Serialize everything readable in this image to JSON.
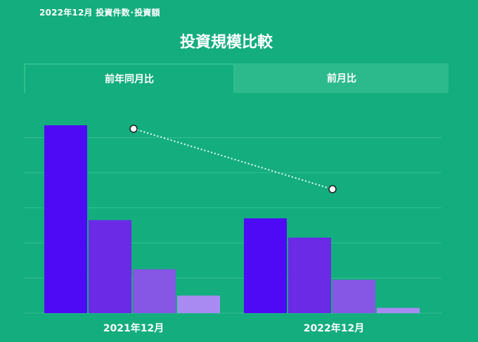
{
  "header": {
    "text": "2022年12月 投資件数･投資額"
  },
  "chart_title": "投資規模比較",
  "tabs": [
    {
      "label": "前年同月比",
      "active": true
    },
    {
      "label": "前月比",
      "active": false
    }
  ],
  "colors": {
    "background": "#14ad7d",
    "grid": "#33bf93",
    "series": [
      "#4f0af5",
      "#6a2ae6",
      "#8656e4",
      "#a98af2"
    ],
    "line": "#e8fff6"
  },
  "chart_data": {
    "type": "bar",
    "categories": [
      "2021年12月",
      "2022年12月"
    ],
    "ylim": [
      0,
      5.4
    ],
    "gridlines": [
      0,
      1,
      2,
      3,
      4,
      5
    ],
    "series": [
      {
        "values": [
          5.35,
          2.7
        ]
      },
      {
        "values": [
          2.65,
          2.15
        ]
      },
      {
        "values": [
          1.25,
          0.95
        ]
      },
      {
        "values": [
          0.5,
          0.15
        ]
      }
    ],
    "line": {
      "type": "line",
      "style": "dotted",
      "values": [
        5.25,
        3.53
      ]
    }
  }
}
